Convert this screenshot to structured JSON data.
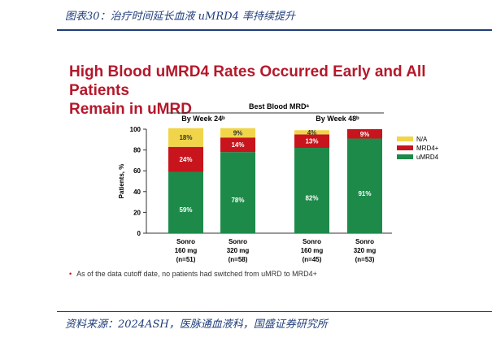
{
  "caption": "图表30：治疗时间延长血液 uMRD4 率持续提升",
  "source": "资料来源：2024ASH，医脉通血液科，国盛证券研究所",
  "title_line1": "High Blood uMRD4 Rates Occurred Early and All Patients",
  "title_line2": "Remain in uMRD",
  "note": "As of the data cutoff date, no patients had switched from uMRD to MRD4+",
  "note_bullet": "•",
  "colors": {
    "uMRD4": "#1e8a4a",
    "MRD4+": "#c8141c",
    "N/A": "#f0d54a"
  },
  "chart_data": {
    "type": "bar",
    "stacked": true,
    "title": "Best Blood MRDᵃ",
    "groups": [
      "By Week 24ᵇ",
      "By Week 48ᵇ"
    ],
    "categories": [
      [
        "Sonro",
        "160 mg",
        "(n=51)"
      ],
      [
        "Sonro",
        "320 mg",
        "(n=58)"
      ],
      [
        "Sonro",
        "160 mg",
        "(n=45)"
      ],
      [
        "Sonro",
        "320 mg",
        "(n=53)"
      ]
    ],
    "ylabel": "Patients, %",
    "ylim": [
      0,
      100
    ],
    "yticks": [
      0,
      20,
      40,
      60,
      80,
      100
    ],
    "legend_position": "right",
    "series": [
      {
        "name": "uMRD4",
        "values": [
          59,
          78,
          82,
          91
        ],
        "labels": [
          "59%",
          "78%",
          "82%",
          "91%"
        ]
      },
      {
        "name": "MRD4+",
        "values": [
          24,
          14,
          13,
          9
        ],
        "labels": [
          "24%",
          "14%",
          "13%",
          "9%"
        ]
      },
      {
        "name": "N/A",
        "values": [
          18,
          9,
          4,
          0
        ],
        "labels": [
          "18%",
          "9%",
          "4%",
          ""
        ]
      }
    ],
    "legend_order": [
      "N/A",
      "MRD4+",
      "uMRD4"
    ]
  }
}
